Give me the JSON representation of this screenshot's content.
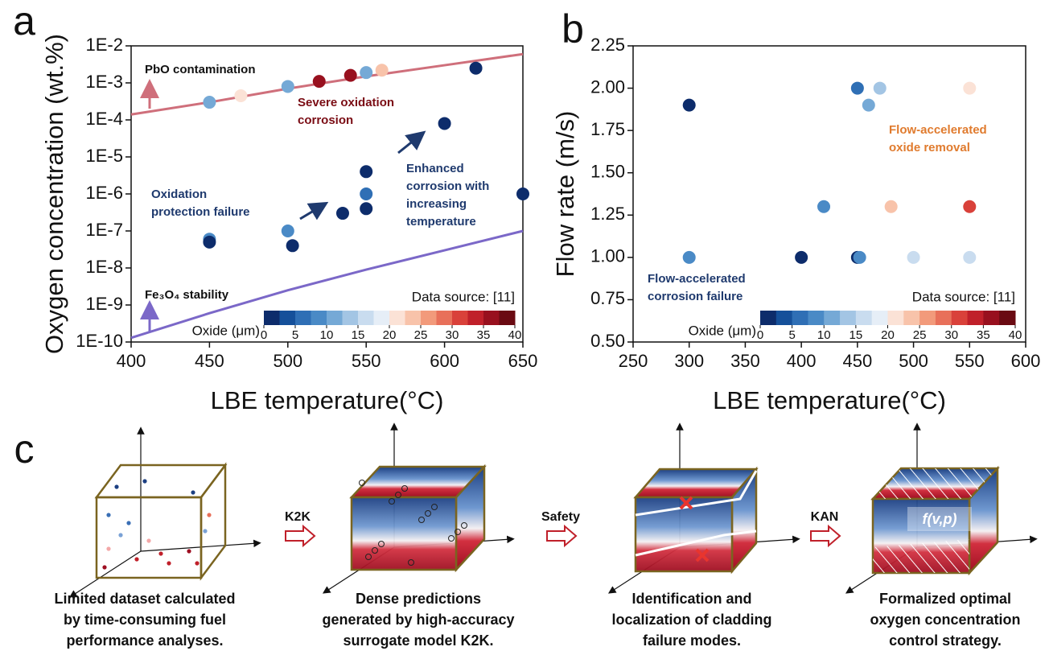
{
  "chart_data": [
    {
      "type": "scatter",
      "panel": "a",
      "xlabel": "LBE temperature(°C)",
      "ylabel": "Oxygen concentration (wt.%)",
      "xlim": [
        400,
        650
      ],
      "xticks": [
        400,
        450,
        500,
        550,
        600,
        650
      ],
      "ylog": true,
      "ylim": [
        1e-10,
        0.01
      ],
      "yticks": [
        {
          "value": 1e-10,
          "label": "1E-10"
        },
        {
          "value": 1e-09,
          "label": "1E-9"
        },
        {
          "value": 1e-08,
          "label": "1E-8"
        },
        {
          "value": 1e-07,
          "label": "1E-7"
        },
        {
          "value": 1e-06,
          "label": "1E-6"
        },
        {
          "value": 1e-05,
          "label": "1E-5"
        },
        {
          "value": 0.0001,
          "label": "1E-4"
        },
        {
          "value": 0.001,
          "label": "1E-3"
        },
        {
          "value": 0.01,
          "label": "1E-2"
        }
      ],
      "series": [
        {
          "x": [
            450,
            470,
            500,
            520,
            540,
            550,
            560,
            620,
            600,
            550,
            550,
            550,
            535,
            650,
            500,
            503,
            450,
            450
          ],
          "values": [
            0.0003,
            0.00045,
            0.0008,
            0.0011,
            0.0016,
            0.0019,
            0.0022,
            0.0025,
            8e-05,
            4e-06,
            1e-06,
            4e-07,
            3e-07,
            1e-06,
            1e-07,
            4e-08,
            6e-08,
            5e-08
          ],
          "oxide": [
            12,
            22,
            12,
            35,
            35,
            12,
            24,
            1,
            1,
            1,
            7,
            1,
            1,
            1,
            9,
            1,
            9,
            1
          ]
        }
      ],
      "curves": [
        {
          "color": "#cf6f7b",
          "x": [
            400,
            450,
            500,
            550,
            600,
            650
          ],
          "values": [
            0.00014,
            0.0003,
            0.0007,
            0.0015,
            0.003,
            0.006
          ]
        },
        {
          "color": "#7b68c8",
          "x": [
            400,
            450,
            500,
            550,
            600,
            650
          ],
          "values": [
            1.3e-10,
            6e-10,
            2.5e-09,
            9e-09,
            3e-08,
            1e-07
          ]
        }
      ],
      "annotations": [
        {
          "lines": [
            "PbO contamination"
          ],
          "color": "#111111"
        },
        {
          "lines": [
            "Severe oxidation",
            "corrosion"
          ],
          "color": "#7a0c14"
        },
        {
          "lines": [
            "Enhanced",
            "corrosion with",
            "increasing",
            "temperature"
          ],
          "color": "#1f3a6e"
        },
        {
          "lines": [
            "Oxidation",
            "protection failure"
          ],
          "color": "#1f3a6e"
        },
        {
          "lines": [
            "Fe₃O₄ stability"
          ],
          "color": "#111111"
        }
      ],
      "source": "Data source: [11]",
      "colorbar": {
        "label": "Oxide (μm)",
        "lim": [
          0,
          40
        ],
        "ticks": [
          0,
          5,
          10,
          15,
          20,
          25,
          30,
          35,
          40
        ],
        "colors": [
          "#0d2c6b",
          "#15509a",
          "#2f6fb5",
          "#4a8ac6",
          "#75a9d6",
          "#a3c5e4",
          "#c9dcef",
          "#e6eef7",
          "#fbe2d6",
          "#f8c3aa",
          "#f29a7b",
          "#e8705a",
          "#d9413a",
          "#c0202a",
          "#98101e",
          "#6a0a12"
        ]
      }
    },
    {
      "type": "scatter",
      "panel": "b",
      "xlabel": "LBE temperature(°C)",
      "ylabel": "Flow rate (m/s)",
      "xlim": [
        250,
        600
      ],
      "xticks": [
        250,
        300,
        350,
        400,
        450,
        500,
        550,
        600
      ],
      "ylog": false,
      "ylim": [
        0.5,
        2.25
      ],
      "yticks": [
        {
          "value": 0.5,
          "label": "0.50"
        },
        {
          "value": 0.75,
          "label": "0.75"
        },
        {
          "value": 1,
          "label": "1.00"
        },
        {
          "value": 1.25,
          "label": "1.25"
        },
        {
          "value": 1.5,
          "label": "1.50"
        },
        {
          "value": 1.75,
          "label": "1.75"
        },
        {
          "value": 2,
          "label": "2.00"
        },
        2.25
      ],
      "series": [
        {
          "x": [
            300,
            450,
            470,
            460,
            550,
            420,
            480,
            550,
            300,
            400,
            450,
            452,
            500,
            550
          ],
          "values": [
            1.9,
            2,
            2,
            1.9,
            2,
            1.3,
            1.3,
            1.3,
            1,
            1,
            1,
            1,
            1,
            1
          ],
          "oxide": [
            1,
            7,
            14,
            11,
            22,
            8,
            24,
            30,
            9,
            1,
            1,
            8,
            17,
            17
          ]
        }
      ],
      "curves": [],
      "annotations": [
        {
          "lines": [
            "Flow-accelerated",
            "oxide removal"
          ],
          "color": "#e07b2e"
        },
        {
          "lines": [
            "Flow-accelerated",
            "corrosion failure"
          ],
          "color": "#1f3a6e"
        }
      ],
      "source": "Data source: [11]",
      "colorbar": {
        "label": "Oxide (μm)",
        "lim": [
          0,
          40
        ],
        "ticks": [
          0,
          5,
          10,
          15,
          20,
          25,
          30,
          35,
          40
        ],
        "colors": [
          "#0d2c6b",
          "#15509a",
          "#2f6fb5",
          "#4a8ac6",
          "#75a9d6",
          "#a3c5e4",
          "#c9dcef",
          "#e6eef7",
          "#fbe2d6",
          "#f8c3aa",
          "#f29a7b",
          "#e8705a",
          "#d9413a",
          "#c0202a",
          "#98101e",
          "#6a0a12"
        ]
      }
    }
  ],
  "diagram": {
    "panel": "c",
    "steps": [
      {
        "caption": [
          "Limited dataset calculated",
          "by time-consuming fuel",
          "performance analyses."
        ]
      },
      {
        "caption": [
          "Dense predictions",
          "generated by high-accuracy",
          "surrogate model K2K."
        ]
      },
      {
        "caption": [
          "Identification and",
          "localization of cladding",
          "failure modes."
        ]
      },
      {
        "caption": [
          "Formalized optimal",
          "oxygen concentration",
          "control strategy."
        ]
      }
    ],
    "transitions": [
      "K2K",
      "Safety",
      "KAN"
    ],
    "formula": "f(v,p)"
  }
}
